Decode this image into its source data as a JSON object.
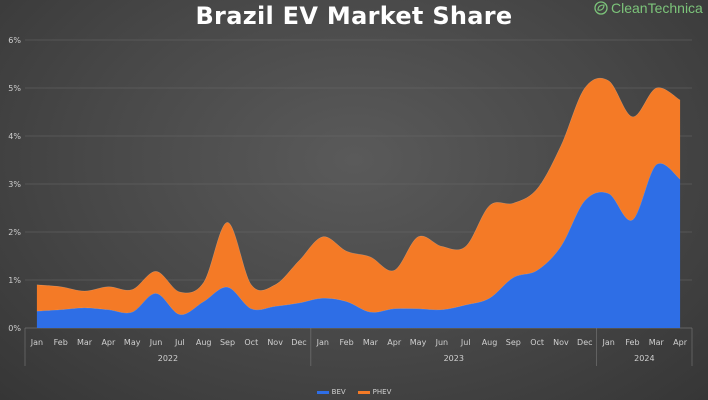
{
  "brand": {
    "name": "CleanTechnica",
    "icon": "leaf-circle-icon",
    "color": "#7cc47a"
  },
  "chart_data": {
    "type": "area",
    "stacked": true,
    "title": "Brazil EV Market Share",
    "xlabel": "",
    "ylabel": "",
    "x": [
      "Jan",
      "Feb",
      "Mar",
      "Apr",
      "May",
      "Jun",
      "Jul",
      "Aug",
      "Sep",
      "Oct",
      "Nov",
      "Dec",
      "Jan",
      "Feb",
      "Mar",
      "Apr",
      "May",
      "Jun",
      "Jul",
      "Aug",
      "Sep",
      "Oct",
      "Nov",
      "Dec",
      "Jan",
      "Feb",
      "Mar",
      "Apr"
    ],
    "year_groups": [
      {
        "label": "2022",
        "start": 0,
        "end": 11
      },
      {
        "label": "2023",
        "start": 12,
        "end": 23
      },
      {
        "label": "2024",
        "start": 24,
        "end": 27
      }
    ],
    "ylim": [
      0,
      6
    ],
    "yticks": [
      0,
      1,
      2,
      3,
      4,
      5,
      6
    ],
    "ytick_labels": [
      "0%",
      "1%",
      "2%",
      "3%",
      "4%",
      "5%",
      "6%"
    ],
    "grid": true,
    "legend_position": "bottom",
    "series": [
      {
        "name": "BEV",
        "color": "#2e6ee6",
        "values": [
          0.35,
          0.38,
          0.42,
          0.38,
          0.33,
          0.72,
          0.28,
          0.55,
          0.85,
          0.4,
          0.45,
          0.52,
          0.62,
          0.55,
          0.33,
          0.4,
          0.4,
          0.38,
          0.48,
          0.62,
          1.05,
          1.2,
          1.7,
          2.65,
          2.8,
          2.25,
          3.4,
          3.1
        ]
      },
      {
        "name": "PHEV",
        "color": "#f47a26",
        "values": [
          0.55,
          0.48,
          0.35,
          0.48,
          0.47,
          0.46,
          0.47,
          0.4,
          1.35,
          0.5,
          0.45,
          0.88,
          1.28,
          1.05,
          1.15,
          0.8,
          1.5,
          1.32,
          1.22,
          1.93,
          1.55,
          1.7,
          2.1,
          2.35,
          2.35,
          2.15,
          1.6,
          1.65
        ]
      }
    ]
  }
}
